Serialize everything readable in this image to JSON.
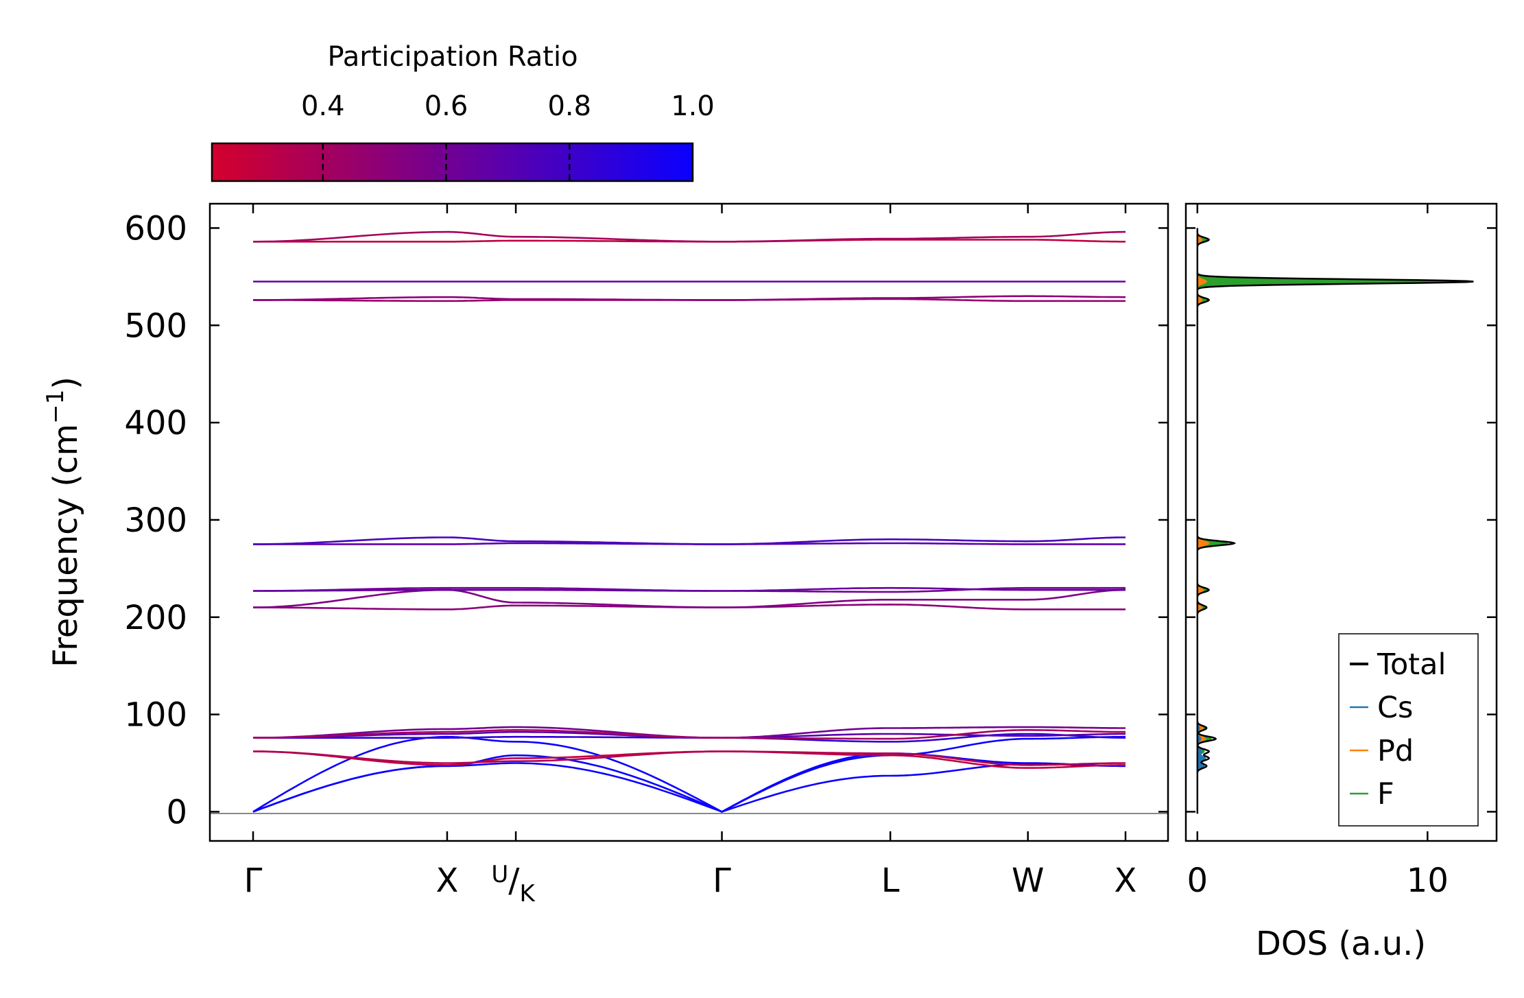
{
  "chart_data": [
    {
      "type": "line",
      "name": "phonon-band-structure",
      "ylabel": "Frequency (cm",
      "ylabel_superscript": "−1",
      "ylabel_suffix": ")",
      "ylim": [
        -30,
        625
      ],
      "yticks": [
        0,
        100,
        200,
        300,
        400,
        500,
        600
      ],
      "path_positions": [
        0,
        1.0,
        1.354,
        2.416,
        3.284,
        3.993,
        4.496
      ],
      "x_labels": [
        {
          "pos": 0,
          "label": "Γ"
        },
        {
          "pos": 1.0,
          "label": "X"
        },
        {
          "pos": 1.354,
          "label": "U/K",
          "top": "U",
          "sep": "/",
          "bottom": "K"
        },
        {
          "pos": 2.416,
          "label": "Γ"
        },
        {
          "pos": 3.284,
          "label": "L"
        },
        {
          "pos": 3.993,
          "label": "W"
        },
        {
          "pos": 4.496,
          "label": "X"
        }
      ],
      "color_map": {
        "low": "#d4002c",
        "high": "#0a00ff"
      },
      "bands": [
        {
          "name": "acoustic-TA1",
          "pr": 1.0,
          "freq": [
            0,
            47,
            50,
            0,
            37,
            49,
            47
          ]
        },
        {
          "name": "acoustic-TA2",
          "pr": 1.0,
          "freq": [
            0,
            47,
            58,
            0,
            60,
            50,
            47
          ]
        },
        {
          "name": "acoustic-LA",
          "pr": 1.0,
          "freq": [
            0,
            77,
            72,
            0,
            58,
            75,
            77
          ]
        },
        {
          "name": "optical-1",
          "pr": 0.3,
          "freq": [
            62,
            48,
            55,
            62,
            58,
            45,
            48
          ]
        },
        {
          "name": "optical-2",
          "pr": 0.35,
          "freq": [
            62,
            50,
            52,
            62,
            60,
            48,
            50
          ]
        },
        {
          "name": "optical-3",
          "pr": 0.85,
          "freq": [
            76,
            76,
            77,
            76,
            72,
            80,
            76
          ]
        },
        {
          "name": "optical-4",
          "pr": 0.7,
          "freq": [
            76,
            80,
            82,
            76,
            80,
            78,
            80
          ]
        },
        {
          "name": "optical-5",
          "pr": 0.6,
          "freq": [
            76,
            85,
            87,
            76,
            86,
            87,
            86
          ]
        },
        {
          "name": "optical-6",
          "pr": 0.4,
          "freq": [
            76,
            82,
            84,
            76,
            75,
            84,
            82
          ]
        },
        {
          "name": "optical-7",
          "pr": 0.5,
          "freq": [
            210,
            208,
            212,
            210,
            213,
            208,
            208
          ]
        },
        {
          "name": "optical-8",
          "pr": 0.55,
          "freq": [
            210,
            228,
            215,
            210,
            218,
            218,
            228
          ]
        },
        {
          "name": "optical-9",
          "pr": 0.6,
          "freq": [
            227,
            230,
            230,
            227,
            226,
            230,
            230
          ]
        },
        {
          "name": "optical-10",
          "pr": 0.65,
          "freq": [
            227,
            228,
            228,
            227,
            230,
            228,
            228
          ]
        },
        {
          "name": "optical-11",
          "pr": 0.7,
          "freq": [
            275,
            275,
            276,
            275,
            276,
            275,
            275
          ]
        },
        {
          "name": "optical-12",
          "pr": 0.75,
          "freq": [
            275,
            282,
            278,
            275,
            280,
            278,
            282
          ]
        },
        {
          "name": "optical-13",
          "pr": 0.45,
          "freq": [
            526,
            525,
            526,
            526,
            527,
            525,
            525
          ]
        },
        {
          "name": "optical-14",
          "pr": 0.5,
          "freq": [
            526,
            529,
            527,
            526,
            528,
            530,
            529
          ]
        },
        {
          "name": "optical-15",
          "pr": 0.65,
          "freq": [
            545,
            545,
            545,
            545,
            545,
            545,
            545
          ]
        },
        {
          "name": "optical-16",
          "pr": 0.3,
          "freq": [
            586,
            586,
            587,
            586,
            588,
            588,
            586
          ]
        },
        {
          "name": "optical-17",
          "pr": 0.4,
          "freq": [
            586,
            596,
            591,
            586,
            589,
            591,
            596
          ]
        }
      ]
    },
    {
      "type": "area",
      "name": "projected-dos",
      "xlabel": "DOS (a.u.)",
      "xlim": [
        -0.5,
        13.0
      ],
      "xticks": [
        0,
        10
      ],
      "ylim": [
        -30,
        625
      ],
      "series": [
        {
          "name": "Total",
          "color": "#000000",
          "peaks": [
            [
              47,
              0.4
            ],
            [
              55,
              0.5
            ],
            [
              62,
              0.5
            ],
            [
              75,
              0.8
            ],
            [
              86,
              0.4
            ],
            [
              210,
              0.4
            ],
            [
              228,
              0.5
            ],
            [
              276,
              1.6
            ],
            [
              526,
              0.5
            ],
            [
              545,
              12.0
            ],
            [
              588,
              0.5
            ]
          ]
        },
        {
          "name": "Cs",
          "color": "#1f77b4",
          "peaks": [
            [
              47,
              0.3
            ],
            [
              55,
              0.35
            ],
            [
              62,
              0.2
            ],
            [
              75,
              0.15
            ],
            [
              86,
              0.1
            ]
          ]
        },
        {
          "name": "Pd",
          "color": "#ff7f0e",
          "peaks": [
            [
              75,
              0.35
            ],
            [
              86,
              0.25
            ],
            [
              210,
              0.2
            ],
            [
              228,
              0.25
            ],
            [
              276,
              0.5
            ],
            [
              526,
              0.2
            ],
            [
              545,
              0.4
            ],
            [
              588,
              0.2
            ]
          ]
        },
        {
          "name": "F",
          "color": "#2ca02c",
          "peaks": [
            [
              62,
              0.3
            ],
            [
              75,
              0.6
            ],
            [
              86,
              0.35
            ],
            [
              210,
              0.35
            ],
            [
              228,
              0.45
            ],
            [
              276,
              1.3
            ],
            [
              526,
              0.45
            ],
            [
              545,
              12.0
            ],
            [
              588,
              0.45
            ]
          ]
        }
      ]
    },
    {
      "type": "colorbar",
      "name": "participation-ratio-colorbar",
      "title": "Participation Ratio",
      "range": [
        0.22,
        1.0
      ],
      "ticks": [
        0.4,
        0.6,
        0.8,
        1.0
      ],
      "tick_labels": [
        "0.4",
        "0.6",
        "0.8",
        "1.0"
      ],
      "low_color": "#d4002c",
      "high_color": "#0a00ff"
    }
  ]
}
